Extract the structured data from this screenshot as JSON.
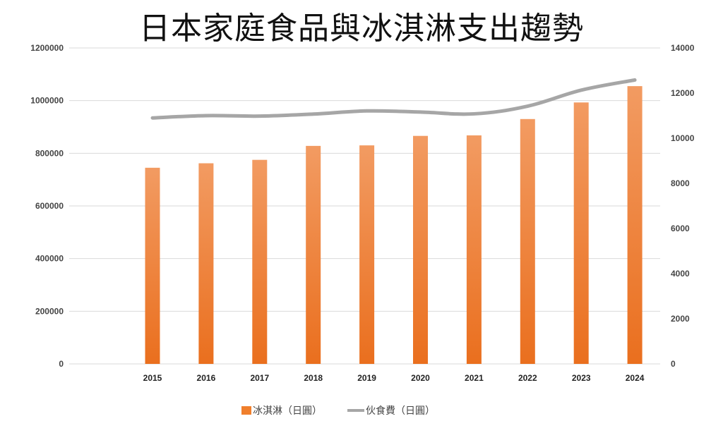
{
  "chart_data": {
    "type": "bar",
    "title": "日本家庭食品與冰淇淋支出趨勢",
    "categories": [
      "2015",
      "2016",
      "2017",
      "2018",
      "2019",
      "2020",
      "2021",
      "2022",
      "2023",
      "2024"
    ],
    "series": [
      {
        "name": "冰淇淋（日圓）",
        "type": "bar",
        "axis": "left",
        "color": "#f07f2c",
        "values": [
          745000,
          762000,
          775000,
          828000,
          830000,
          866000,
          868000,
          930000,
          993000,
          1055000
        ]
      },
      {
        "name": "伙食費（日圓）",
        "type": "line",
        "axis": "right",
        "color": "#a6a6a6",
        "values": [
          10900,
          11000,
          10980,
          11070,
          11210,
          11160,
          11080,
          11420,
          12130,
          12580
        ]
      }
    ],
    "y_left": {
      "min": 0,
      "max": 1200000,
      "ticks": [
        "0",
        "200000",
        "400000",
        "600000",
        "800000",
        "1000000",
        "1200000"
      ]
    },
    "y_right": {
      "min": 0,
      "max": 14000,
      "ticks": [
        "0",
        "2000",
        "4000",
        "6000",
        "8000",
        "10000",
        "12000",
        "14000"
      ]
    },
    "grid": true,
    "legend_position": "bottom"
  }
}
